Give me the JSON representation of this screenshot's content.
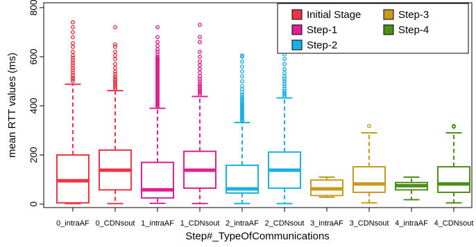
{
  "chart_data": {
    "type": "boxplot",
    "title": "",
    "xlabel": "Step#_TypeOfCommunications",
    "ylabel": "mean RTT values (ms)",
    "ylim": [
      -25,
      820
    ],
    "yticks": [
      0,
      200,
      400,
      600,
      800
    ],
    "grid": false,
    "legend_position": "top-right",
    "legend": [
      {
        "label": "Initial Stage",
        "color": "#ee3344"
      },
      {
        "label": "Step-1",
        "color": "#e0208f"
      },
      {
        "label": "Step-2",
        "color": "#1ab0e5"
      },
      {
        "label": "Step-3",
        "color": "#c89a1c"
      },
      {
        "label": "Step-4",
        "color": "#4c8e1a"
      }
    ],
    "categories": [
      "0_intraAF",
      "0_CDNsout",
      "1_intraAF",
      "1_CDNsout",
      "2_intraAF",
      "2_CDNsout",
      "3_intraAF",
      "3_CDNsout",
      "4_intraAF",
      "4_CDNsout"
    ],
    "boxes": [
      {
        "category": "0_intraAF",
        "color": "#ee3344",
        "whisker_low": 2,
        "q1": 5,
        "median": 95,
        "q3": 200,
        "whisker_high": 488,
        "outliers": [
          500,
          508,
          515,
          525,
          535,
          545,
          555,
          565,
          575,
          585,
          595,
          605,
          620,
          640,
          655,
          680,
          700,
          720,
          740
        ]
      },
      {
        "category": "0_CDNsout",
        "color": "#ee3344",
        "whisker_low": 2,
        "q1": 58,
        "median": 138,
        "q3": 220,
        "whisker_high": 462,
        "outliers": [
          468,
          475,
          482,
          490,
          498,
          505,
          512,
          520,
          530,
          540,
          555,
          570,
          590,
          605,
          620,
          640,
          650,
          720
        ]
      },
      {
        "category": "1_intraAF",
        "color": "#e0208f",
        "whisker_low": 3,
        "q1": 25,
        "median": 58,
        "q3": 170,
        "whisker_high": 390,
        "outliers": [
          395,
          400,
          405,
          410,
          415,
          420,
          425,
          430,
          435,
          440,
          445,
          450,
          455,
          460,
          465,
          470,
          475,
          480,
          485,
          490,
          495,
          500,
          505,
          510,
          515,
          520,
          525,
          530,
          535,
          540,
          545,
          550,
          555,
          560,
          565,
          570,
          575,
          580,
          585,
          590,
          595,
          600,
          610,
          620,
          630,
          645,
          660,
          680,
          720
        ]
      },
      {
        "category": "1_CDNsout",
        "color": "#e0208f",
        "whisker_low": 2,
        "q1": 65,
        "median": 138,
        "q3": 215,
        "whisker_high": 438,
        "outliers": [
          445,
          452,
          460,
          468,
          475,
          482,
          490,
          500,
          510,
          520,
          535,
          550,
          565,
          580,
          600,
          620,
          660,
          680,
          730
        ]
      },
      {
        "category": "2_intraAF",
        "color": "#1ab0e5",
        "whisker_low": 2,
        "q1": 45,
        "median": 62,
        "q3": 158,
        "whisker_high": 332,
        "outliers": [
          338,
          343,
          348,
          353,
          358,
          363,
          368,
          373,
          378,
          383,
          388,
          393,
          398,
          403,
          408,
          413,
          420,
          428,
          436,
          445,
          455,
          468,
          480,
          500,
          520,
          540,
          560,
          580,
          600,
          605
        ]
      },
      {
        "category": "2_CDNsout",
        "color": "#1ab0e5",
        "whisker_low": 2,
        "q1": 65,
        "median": 138,
        "q3": 212,
        "whisker_high": 432,
        "outliers": [
          438,
          445,
          452,
          460,
          470,
          480,
          490,
          500,
          510,
          520,
          535,
          550,
          570,
          590,
          610,
          640,
          690,
          730
        ]
      },
      {
        "category": "3_intraAF",
        "color": "#c89a1c",
        "whisker_low": 28,
        "q1": 35,
        "median": 62,
        "q3": 98,
        "whisker_high": 110,
        "outliers": []
      },
      {
        "category": "3_CDNsout",
        "color": "#c89a1c",
        "whisker_low": 5,
        "q1": 48,
        "median": 82,
        "q3": 152,
        "whisker_high": 290,
        "outliers": [
          318
        ]
      },
      {
        "category": "4_intraAF",
        "color": "#4c8e1a",
        "whisker_low": 18,
        "q1": 58,
        "median": 75,
        "q3": 88,
        "whisker_high": 110,
        "outliers": []
      },
      {
        "category": "4_CDNsout",
        "color": "#4c8e1a",
        "whisker_low": 5,
        "q1": 48,
        "median": 82,
        "q3": 152,
        "whisker_high": 290,
        "outliers": [
          315,
          318
        ]
      }
    ]
  }
}
